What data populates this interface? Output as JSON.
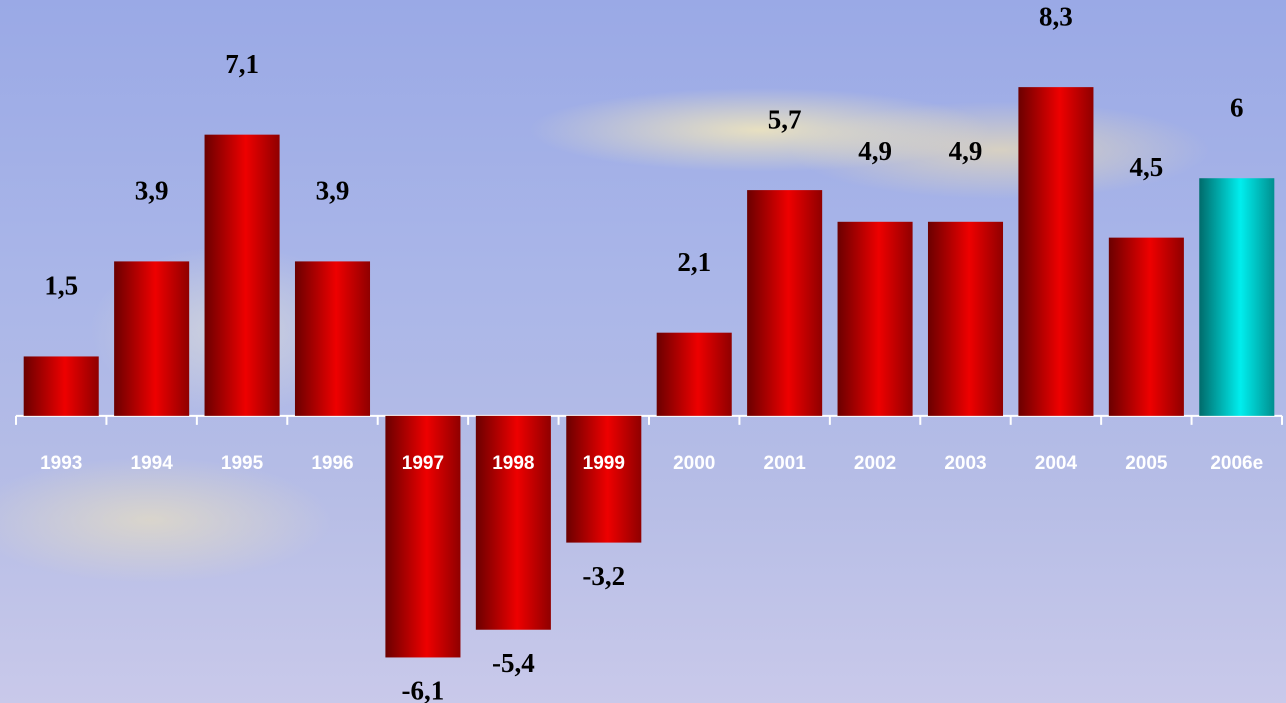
{
  "chart_data": {
    "type": "bar",
    "categories": [
      "1993",
      "1994",
      "1995",
      "1996",
      "1997",
      "1998",
      "1999",
      "2000",
      "2001",
      "2002",
      "2003",
      "2004",
      "2005",
      "2006e"
    ],
    "values": [
      1.5,
      3.9,
      7.1,
      3.9,
      -6.1,
      -5.4,
      -3.2,
      2.1,
      5.7,
      4.9,
      4.9,
      8.3,
      4.5,
      6
    ],
    "value_labels": [
      "1,5",
      "3,9",
      "7,1",
      "3,9",
      "-6,1",
      "-5,4",
      "-3,2",
      "2,1",
      "5,7",
      "4,9",
      "4,9",
      "8,3",
      "4,5",
      "6"
    ],
    "colors": [
      "#ee0000",
      "#ee0000",
      "#ee0000",
      "#ee0000",
      "#ee0000",
      "#ee0000",
      "#ee0000",
      "#ee0000",
      "#ee0000",
      "#ee0000",
      "#ee0000",
      "#ee0000",
      "#ee0000",
      "#00eeee"
    ],
    "ylim": [
      -7.25,
      10.5
    ]
  }
}
